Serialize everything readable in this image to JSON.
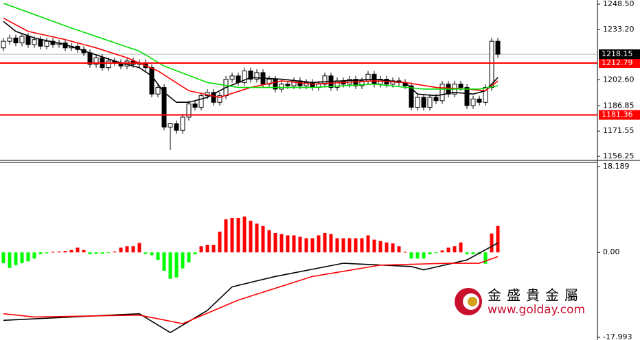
{
  "chart_data": [
    {
      "type": "candlestick",
      "open": [
        1222,
        1226,
        1228,
        1225,
        1229,
        1224,
        1227,
        1223,
        1226,
        1224,
        1225,
        1222,
        1223,
        1221,
        1219,
        1212,
        1216,
        1210,
        1214,
        1213,
        1211,
        1214,
        1212,
        1213,
        1210,
        1194,
        1198,
        1174,
        1176,
        1172,
        1180,
        1188,
        1186,
        1193,
        1195,
        1189,
        1193,
        1203,
        1205,
        1201,
        1208,
        1203,
        1207,
        1200,
        1203,
        1197,
        1200,
        1199,
        1202,
        1199,
        1201,
        1198,
        1200,
        1205,
        1198,
        1202,
        1200,
        1203,
        1199,
        1202,
        1206,
        1200,
        1203,
        1200,
        1202,
        1201,
        1199,
        1186,
        1192,
        1186,
        1192,
        1190,
        1200,
        1194,
        1200,
        1198,
        1187,
        1191,
        1189,
        1198,
        1226
      ],
      "high": [
        1228,
        1230,
        1230,
        1231,
        1231,
        1229,
        1229,
        1228,
        1228,
        1227,
        1227,
        1225,
        1225,
        1223,
        1221,
        1218,
        1218,
        1216,
        1216,
        1215,
        1216,
        1216,
        1215,
        1215,
        1212,
        1200,
        1200,
        1176,
        1178,
        1182,
        1190,
        1190,
        1195,
        1197,
        1197,
        1195,
        1205,
        1207,
        1207,
        1210,
        1210,
        1209,
        1209,
        1205,
        1205,
        1202,
        1202,
        1204,
        1204,
        1203,
        1203,
        1202,
        1207,
        1207,
        1204,
        1204,
        1205,
        1205,
        1204,
        1208,
        1208,
        1205,
        1205,
        1204,
        1204,
        1203,
        1201,
        1194,
        1194,
        1194,
        1194,
        1202,
        1202,
        1202,
        1202,
        1200,
        1193,
        1193,
        1200,
        1228,
        1228
      ],
      "low": [
        1220,
        1224,
        1223,
        1223,
        1222,
        1222,
        1221,
        1221,
        1222,
        1222,
        1220,
        1220,
        1219,
        1217,
        1210,
        1210,
        1208,
        1208,
        1211,
        1209,
        1209,
        1210,
        1210,
        1208,
        1192,
        1192,
        1172,
        1160,
        1170,
        1170,
        1178,
        1184,
        1184,
        1191,
        1187,
        1187,
        1191,
        1201,
        1199,
        1199,
        1201,
        1201,
        1198,
        1198,
        1195,
        1195,
        1197,
        1197,
        1197,
        1197,
        1196,
        1196,
        1198,
        1196,
        1196,
        1198,
        1198,
        1197,
        1197,
        1200,
        1198,
        1198,
        1198,
        1198,
        1199,
        1197,
        1184,
        1184,
        1184,
        1184,
        1188,
        1188,
        1192,
        1192,
        1196,
        1185,
        1185,
        1187,
        1187,
        1196,
        1216
      ],
      "close": [
        1226,
        1228,
        1225,
        1229,
        1224,
        1227,
        1223,
        1226,
        1224,
        1225,
        1222,
        1223,
        1221,
        1219,
        1212,
        1216,
        1210,
        1214,
        1213,
        1211,
        1214,
        1212,
        1213,
        1210,
        1194,
        1198,
        1174,
        1176,
        1172,
        1180,
        1188,
        1186,
        1193,
        1195,
        1189,
        1193,
        1203,
        1205,
        1201,
        1208,
        1203,
        1207,
        1200,
        1203,
        1197,
        1200,
        1199,
        1202,
        1199,
        1201,
        1198,
        1200,
        1205,
        1198,
        1202,
        1200,
        1203,
        1199,
        1202,
        1206,
        1200,
        1203,
        1200,
        1202,
        1201,
        1199,
        1186,
        1192,
        1186,
        1192,
        1190,
        1200,
        1194,
        1200,
        1198,
        1187,
        1191,
        1189,
        1198,
        1226,
        1218.15
      ],
      "lines": [
        {
          "color": "#000000",
          "x": [
            0,
            2,
            5,
            10,
            14,
            18,
            22,
            24,
            26,
            28,
            30,
            33,
            36,
            40,
            45,
            50,
            55,
            60,
            65,
            67,
            70,
            73,
            76,
            78,
            80
          ],
          "values": [
            1238,
            1232,
            1228,
            1224,
            1219,
            1214,
            1210,
            1205,
            1195,
            1189,
            1189,
            1192,
            1198,
            1204,
            1203,
            1201,
            1202,
            1203,
            1201,
            1194,
            1193,
            1195,
            1194,
            1196,
            1204
          ]
        },
        {
          "color": "#ff0000",
          "x": [
            0,
            4,
            10,
            15,
            20,
            25,
            30,
            35,
            40,
            45,
            50,
            55,
            60,
            65,
            70,
            75,
            78,
            80
          ],
          "values": [
            1240,
            1232,
            1227,
            1222,
            1216,
            1208,
            1196,
            1192,
            1198,
            1202,
            1200,
            1201,
            1202,
            1201,
            1198,
            1197,
            1196,
            1202
          ]
        },
        {
          "color": "#00e000",
          "x": [
            0,
            11,
            22,
            26,
            33,
            38,
            50,
            60,
            68,
            77,
            80
          ],
          "values": [
            1249,
            1234,
            1220,
            1211,
            1201,
            1198,
            1198,
            1200,
            1197,
            1197,
            1199
          ]
        }
      ],
      "levels": [
        1212.79,
        1181.36
      ],
      "level_color": "#ff0000",
      "current_price": 1218.15,
      "ylim": [
        1154.2,
        1251.0
      ],
      "yticks": [
        {
          "value": 1248.5,
          "label": "1248.50"
        },
        {
          "value": 1233.2,
          "label": "1233.20"
        },
        {
          "value": 1202.6,
          "label": "1202.60"
        },
        1186.85,
        1171.55,
        1156.25
      ]
    },
    {
      "type": "histogram",
      "values": [
        -2.3,
        -3.3,
        -2.7,
        -2.3,
        -1.9,
        -1.3,
        -0.4,
        -0.2,
        0.1,
        0.2,
        0.3,
        0.5,
        1.0,
        0.5,
        -0.4,
        -0.3,
        -0.3,
        -0.1,
        0.2,
        1.0,
        1.3,
        1.3,
        2.0,
        -0.3,
        -0.6,
        -1.6,
        -3.9,
        -5.6,
        -5.3,
        -3.4,
        -2.1,
        -0.4,
        1.3,
        1.6,
        1.6,
        4.4,
        7.0,
        7.3,
        7.3,
        7.6,
        6.7,
        6.1,
        5.6,
        4.7,
        4.1,
        3.9,
        3.6,
        3.6,
        3.3,
        3.0,
        3.0,
        3.6,
        4.1,
        3.9,
        3.0,
        3.0,
        3.0,
        3.0,
        3.0,
        3.6,
        2.7,
        2.4,
        2.1,
        1.9,
        1.3,
        0.1,
        -1.3,
        -1.3,
        -1.3,
        -0.4,
        -0.1,
        0.4,
        1.0,
        1.3,
        2.1,
        -0.4,
        -0.4,
        -0.4,
        -2.4,
        4.0,
        5.6
      ],
      "positive_color": "#ff0000",
      "negative_color": "#00ff00",
      "lines": [
        {
          "color": "#000000",
          "x": [
            0,
            11,
            22,
            27,
            33,
            37,
            44,
            55,
            66,
            68,
            75,
            80
          ],
          "values": [
            -14.4,
            -13.7,
            -13,
            -17,
            -12.3,
            -7.3,
            -5.1,
            -2.3,
            -3,
            -3.7,
            -1.6,
            2
          ]
        },
        {
          "color": "#ff0000",
          "x": [
            0,
            5,
            22,
            29,
            38,
            50,
            61,
            72,
            77,
            80
          ],
          "values": [
            -13,
            -13.7,
            -13.3,
            -15.1,
            -10.1,
            -5.1,
            -2.7,
            -2.3,
            -2.3,
            -0.9
          ]
        }
      ],
      "ylim": [
        -18.57,
        19.06
      ],
      "yticks": [
        18.189,
        {
          "value": 0,
          "label": "0.00"
        },
        -17.993
      ]
    }
  ],
  "watermark": {
    "name": "金盛貴金屬",
    "url": "www.golday.com"
  }
}
